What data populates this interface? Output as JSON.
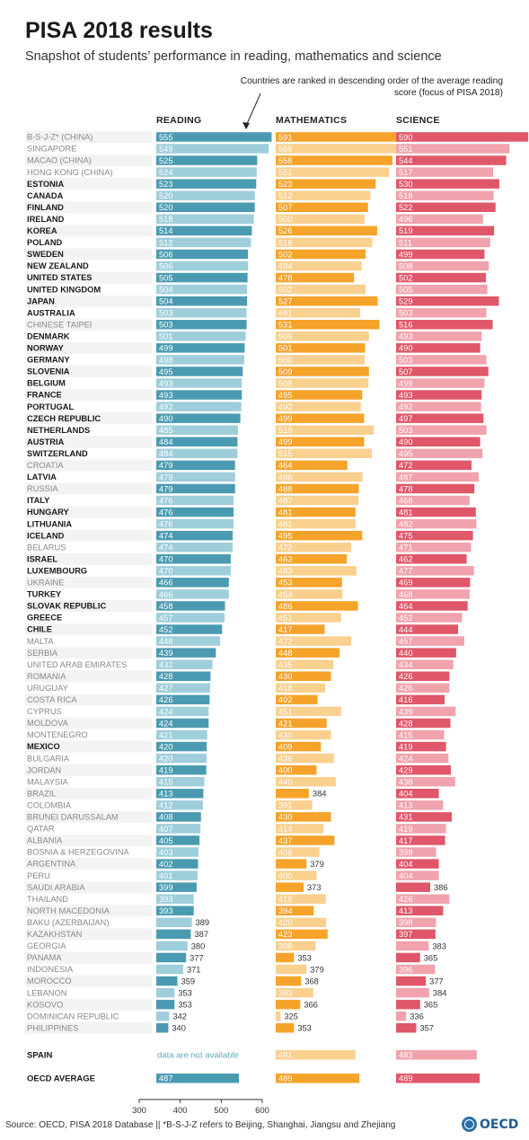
{
  "header": {
    "title": "PISA 2018 results",
    "subtitle": "Snapshot of students’ performance in reading, mathematics and science",
    "note": "Countries are ranked in descending order of the average reading score (focus of PISA 2018)"
  },
  "footer": {
    "source": "Source: OECD, PISA 2018 Database || *B-S-J-Z refers to Beijing, Shanghai, Jiangsu and Zhejiang",
    "logo_text": "OECD"
  },
  "colors": {
    "reading": "#4a9bb1",
    "reading_light": "#9fcedb",
    "math": "#f5a32a",
    "math_light": "#fad08f",
    "science": "#e05769",
    "science_light": "#f0a3ad",
    "oecd_member_text": "#1a1a1a",
    "partner_text": "#888888",
    "row_stripe": "#ececec"
  },
  "chart_data": {
    "type": "bar",
    "title": "PISA 2018 results",
    "subtitle": "Snapshot of students’ performance in reading, mathematics and science",
    "subjects": [
      "READING",
      "MATHEMATICS",
      "SCIENCE"
    ],
    "x_axis": {
      "ticks": [
        300,
        400,
        500,
        600
      ],
      "min": 300,
      "max": 600
    },
    "countries": [
      {
        "name": "B-S-J-Z* (CHINA)",
        "oecd": false,
        "reading": 555,
        "math": 591,
        "science": 590,
        "r_hi": true,
        "m_hi": true,
        "s_hi": true
      },
      {
        "name": "SINGAPORE",
        "oecd": false,
        "reading": 549,
        "math": 569,
        "science": 551,
        "r_hi": false,
        "m_hi": false,
        "s_hi": false
      },
      {
        "name": "MACAO (CHINA)",
        "oecd": false,
        "reading": 525,
        "math": 558,
        "science": 544,
        "r_hi": true,
        "m_hi": true,
        "s_hi": true
      },
      {
        "name": "HONG KONG (CHINA)",
        "oecd": false,
        "reading": 524,
        "math": 551,
        "science": 517,
        "r_hi": false,
        "m_hi": false,
        "s_hi": false
      },
      {
        "name": "ESTONIA",
        "oecd": true,
        "reading": 523,
        "math": 523,
        "science": 530,
        "r_hi": true,
        "m_hi": true,
        "s_hi": true
      },
      {
        "name": "CANADA",
        "oecd": true,
        "reading": 520,
        "math": 512,
        "science": 518,
        "r_hi": false,
        "m_hi": false,
        "s_hi": false
      },
      {
        "name": "FINLAND",
        "oecd": true,
        "reading": 520,
        "math": 507,
        "science": 522,
        "r_hi": true,
        "m_hi": true,
        "s_hi": true
      },
      {
        "name": "IRELAND",
        "oecd": true,
        "reading": 518,
        "math": 500,
        "science": 496,
        "r_hi": false,
        "m_hi": false,
        "s_hi": false
      },
      {
        "name": "KOREA",
        "oecd": true,
        "reading": 514,
        "math": 526,
        "science": 519,
        "r_hi": true,
        "m_hi": true,
        "s_hi": true
      },
      {
        "name": "POLAND",
        "oecd": true,
        "reading": 512,
        "math": 516,
        "science": 511,
        "r_hi": false,
        "m_hi": false,
        "s_hi": false
      },
      {
        "name": "SWEDEN",
        "oecd": true,
        "reading": 506,
        "math": 502,
        "science": 499,
        "r_hi": true,
        "m_hi": true,
        "s_hi": true
      },
      {
        "name": "NEW ZEALAND",
        "oecd": true,
        "reading": 506,
        "math": 494,
        "science": 508,
        "r_hi": false,
        "m_hi": false,
        "s_hi": false
      },
      {
        "name": "UNITED STATES",
        "oecd": true,
        "reading": 505,
        "math": 478,
        "science": 502,
        "r_hi": true,
        "m_hi": true,
        "s_hi": true
      },
      {
        "name": "UNITED KINGDOM",
        "oecd": true,
        "reading": 504,
        "math": 502,
        "science": 505,
        "r_hi": false,
        "m_hi": false,
        "s_hi": false
      },
      {
        "name": "JAPAN",
        "oecd": true,
        "reading": 504,
        "math": 527,
        "science": 529,
        "r_hi": true,
        "m_hi": true,
        "s_hi": true
      },
      {
        "name": "AUSTRALIA",
        "oecd": true,
        "reading": 503,
        "math": 491,
        "science": 503,
        "r_hi": false,
        "m_hi": false,
        "s_hi": false
      },
      {
        "name": "CHINESE TAIPEI",
        "oecd": false,
        "reading": 503,
        "math": 531,
        "science": 516,
        "r_hi": true,
        "m_hi": true,
        "s_hi": true
      },
      {
        "name": "DENMARK",
        "oecd": true,
        "reading": 501,
        "math": 509,
        "science": 493,
        "r_hi": false,
        "m_hi": false,
        "s_hi": false
      },
      {
        "name": "NORWAY",
        "oecd": true,
        "reading": 499,
        "math": 501,
        "science": 490,
        "r_hi": true,
        "m_hi": true,
        "s_hi": true
      },
      {
        "name": "GERMANY",
        "oecd": true,
        "reading": 498,
        "math": 500,
        "science": 503,
        "r_hi": false,
        "m_hi": false,
        "s_hi": false
      },
      {
        "name": "SLOVENIA",
        "oecd": true,
        "reading": 495,
        "math": 509,
        "science": 507,
        "r_hi": true,
        "m_hi": true,
        "s_hi": true
      },
      {
        "name": "BELGIUM",
        "oecd": true,
        "reading": 493,
        "math": 508,
        "science": 499,
        "r_hi": false,
        "m_hi": false,
        "s_hi": false
      },
      {
        "name": "FRANCE",
        "oecd": true,
        "reading": 493,
        "math": 495,
        "science": 493,
        "r_hi": true,
        "m_hi": true,
        "s_hi": true
      },
      {
        "name": "PORTUGAL",
        "oecd": true,
        "reading": 492,
        "math": 492,
        "science": 492,
        "r_hi": false,
        "m_hi": false,
        "s_hi": false
      },
      {
        "name": "CZECH REPUBLIC",
        "oecd": true,
        "reading": 490,
        "math": 499,
        "science": 497,
        "r_hi": true,
        "m_hi": true,
        "s_hi": true
      },
      {
        "name": "NETHERLANDS",
        "oecd": true,
        "reading": 485,
        "math": 519,
        "science": 503,
        "r_hi": false,
        "m_hi": false,
        "s_hi": false
      },
      {
        "name": "AUSTRIA",
        "oecd": true,
        "reading": 484,
        "math": 499,
        "science": 490,
        "r_hi": true,
        "m_hi": true,
        "s_hi": true
      },
      {
        "name": "SWITZERLAND",
        "oecd": true,
        "reading": 484,
        "math": 515,
        "science": 495,
        "r_hi": false,
        "m_hi": false,
        "s_hi": false
      },
      {
        "name": "CROATIA",
        "oecd": false,
        "reading": 479,
        "math": 464,
        "science": 472,
        "r_hi": true,
        "m_hi": true,
        "s_hi": true
      },
      {
        "name": "LATVIA",
        "oecd": true,
        "reading": 479,
        "math": 496,
        "science": 487,
        "r_hi": false,
        "m_hi": false,
        "s_hi": false
      },
      {
        "name": "RUSSIA",
        "oecd": false,
        "reading": 479,
        "math": 488,
        "science": 478,
        "r_hi": true,
        "m_hi": true,
        "s_hi": true
      },
      {
        "name": "ITALY",
        "oecd": true,
        "reading": 476,
        "math": 487,
        "science": 468,
        "r_hi": false,
        "m_hi": false,
        "s_hi": false
      },
      {
        "name": "HUNGARY",
        "oecd": true,
        "reading": 476,
        "math": 481,
        "science": 481,
        "r_hi": true,
        "m_hi": true,
        "s_hi": true
      },
      {
        "name": "LITHUANIA",
        "oecd": true,
        "reading": 476,
        "math": 481,
        "science": 482,
        "r_hi": false,
        "m_hi": false,
        "s_hi": false
      },
      {
        "name": "ICELAND",
        "oecd": true,
        "reading": 474,
        "math": 495,
        "science": 475,
        "r_hi": true,
        "m_hi": true,
        "s_hi": true
      },
      {
        "name": "BELARUS",
        "oecd": false,
        "reading": 474,
        "math": 472,
        "science": 471,
        "r_hi": false,
        "m_hi": false,
        "s_hi": false
      },
      {
        "name": "ISRAEL",
        "oecd": true,
        "reading": 470,
        "math": 463,
        "science": 462,
        "r_hi": true,
        "m_hi": true,
        "s_hi": true
      },
      {
        "name": "LUXEMBOURG",
        "oecd": true,
        "reading": 470,
        "math": 483,
        "science": 477,
        "r_hi": false,
        "m_hi": false,
        "s_hi": false
      },
      {
        "name": "UKRAINE",
        "oecd": false,
        "reading": 466,
        "math": 453,
        "science": 469,
        "r_hi": true,
        "m_hi": true,
        "s_hi": true
      },
      {
        "name": "TURKEY",
        "oecd": true,
        "reading": 466,
        "math": 454,
        "science": 468,
        "r_hi": false,
        "m_hi": false,
        "s_hi": false
      },
      {
        "name": "SLOVAK REPUBLIC",
        "oecd": true,
        "reading": 458,
        "math": 486,
        "science": 464,
        "r_hi": true,
        "m_hi": true,
        "s_hi": true
      },
      {
        "name": "GREECE",
        "oecd": true,
        "reading": 457,
        "math": 451,
        "science": 452,
        "r_hi": false,
        "m_hi": false,
        "s_hi": false
      },
      {
        "name": "CHILE",
        "oecd": true,
        "reading": 452,
        "math": 417,
        "science": 444,
        "r_hi": true,
        "m_hi": true,
        "s_hi": true
      },
      {
        "name": "MALTA",
        "oecd": false,
        "reading": 448,
        "math": 472,
        "science": 457,
        "r_hi": false,
        "m_hi": false,
        "s_hi": false
      },
      {
        "name": "SERBIA",
        "oecd": false,
        "reading": 439,
        "math": 448,
        "science": 440,
        "r_hi": true,
        "m_hi": true,
        "s_hi": true
      },
      {
        "name": "UNITED ARAB EMIRATES",
        "oecd": false,
        "reading": 432,
        "math": 435,
        "science": 434,
        "r_hi": false,
        "m_hi": false,
        "s_hi": false
      },
      {
        "name": "ROMANIA",
        "oecd": false,
        "reading": 428,
        "math": 430,
        "science": 426,
        "r_hi": true,
        "m_hi": true,
        "s_hi": true
      },
      {
        "name": "URUGUAY",
        "oecd": false,
        "reading": 427,
        "math": 418,
        "science": 426,
        "r_hi": false,
        "m_hi": false,
        "s_hi": false
      },
      {
        "name": "COSTA RICA",
        "oecd": false,
        "reading": 426,
        "math": 402,
        "science": 416,
        "r_hi": true,
        "m_hi": true,
        "s_hi": true
      },
      {
        "name": "CYPRUS",
        "oecd": false,
        "reading": 424,
        "math": 451,
        "science": 439,
        "r_hi": false,
        "m_hi": false,
        "s_hi": false
      },
      {
        "name": "MOLDOVA",
        "oecd": false,
        "reading": 424,
        "math": 421,
        "science": 428,
        "r_hi": true,
        "m_hi": true,
        "s_hi": true
      },
      {
        "name": "MONTENEGRO",
        "oecd": false,
        "reading": 421,
        "math": 430,
        "science": 415,
        "r_hi": false,
        "m_hi": false,
        "s_hi": false
      },
      {
        "name": "MEXICO",
        "oecd": true,
        "reading": 420,
        "math": 409,
        "science": 419,
        "r_hi": true,
        "m_hi": true,
        "s_hi": true
      },
      {
        "name": "BULGARIA",
        "oecd": false,
        "reading": 420,
        "math": 436,
        "science": 424,
        "r_hi": false,
        "m_hi": false,
        "s_hi": false
      },
      {
        "name": "JORDAN",
        "oecd": false,
        "reading": 419,
        "math": 400,
        "science": 429,
        "r_hi": true,
        "m_hi": true,
        "s_hi": true
      },
      {
        "name": "MALAYSIA",
        "oecd": false,
        "reading": 415,
        "math": 440,
        "science": 438,
        "r_hi": false,
        "m_hi": false,
        "s_hi": false
      },
      {
        "name": "BRAZIL",
        "oecd": false,
        "reading": 413,
        "math": 384,
        "science": 404,
        "r_hi": true,
        "m_hi": true,
        "s_hi": true
      },
      {
        "name": "COLOMBIA",
        "oecd": false,
        "reading": 412,
        "math": 391,
        "science": 413,
        "r_hi": false,
        "m_hi": false,
        "s_hi": false
      },
      {
        "name": "BRUNEI DARUSSALAM",
        "oecd": false,
        "reading": 408,
        "math": 430,
        "science": 431,
        "r_hi": true,
        "m_hi": true,
        "s_hi": true
      },
      {
        "name": "QATAR",
        "oecd": false,
        "reading": 407,
        "math": 414,
        "science": 419,
        "r_hi": false,
        "m_hi": false,
        "s_hi": false
      },
      {
        "name": "ALBANIA",
        "oecd": false,
        "reading": 405,
        "math": 437,
        "science": 417,
        "r_hi": true,
        "m_hi": true,
        "s_hi": true
      },
      {
        "name": "BOSNIA & HERZEGOVINA",
        "oecd": false,
        "reading": 403,
        "math": 406,
        "science": 398,
        "r_hi": false,
        "m_hi": false,
        "s_hi": false
      },
      {
        "name": "ARGENTINA",
        "oecd": false,
        "reading": 402,
        "math": 379,
        "science": 404,
        "r_hi": true,
        "m_hi": true,
        "s_hi": true
      },
      {
        "name": "PERU",
        "oecd": false,
        "reading": 401,
        "math": 400,
        "science": 404,
        "r_hi": false,
        "m_hi": false,
        "s_hi": false
      },
      {
        "name": "SAUDI ARABIA",
        "oecd": false,
        "reading": 399,
        "math": 373,
        "science": 386,
        "r_hi": true,
        "m_hi": true,
        "s_hi": true
      },
      {
        "name": "THAILAND",
        "oecd": false,
        "reading": 393,
        "math": 419,
        "science": 426,
        "r_hi": false,
        "m_hi": false,
        "s_hi": false
      },
      {
        "name": "NORTH MACEDONIA",
        "oecd": false,
        "reading": 393,
        "math": 394,
        "science": 413,
        "r_hi": true,
        "m_hi": true,
        "s_hi": true
      },
      {
        "name": "BAKU (AZERBAIJAN)",
        "oecd": false,
        "reading": 389,
        "math": 420,
        "science": 398,
        "r_hi": false,
        "m_hi": false,
        "s_hi": false
      },
      {
        "name": "KAZAKHSTAN",
        "oecd": false,
        "reading": 387,
        "math": 423,
        "science": 397,
        "r_hi": true,
        "m_hi": true,
        "s_hi": true
      },
      {
        "name": "GEORGIA",
        "oecd": false,
        "reading": 380,
        "math": 398,
        "science": 383,
        "r_hi": false,
        "m_hi": false,
        "s_hi": false
      },
      {
        "name": "PANAMA",
        "oecd": false,
        "reading": 377,
        "math": 353,
        "science": 365,
        "r_hi": true,
        "m_hi": true,
        "s_hi": true
      },
      {
        "name": "INDONESIA",
        "oecd": false,
        "reading": 371,
        "math": 379,
        "science": 396,
        "r_hi": false,
        "m_hi": false,
        "s_hi": false
      },
      {
        "name": "MOROCCO",
        "oecd": false,
        "reading": 359,
        "math": 368,
        "science": 377,
        "r_hi": true,
        "m_hi": true,
        "s_hi": true
      },
      {
        "name": "LEBANON",
        "oecd": false,
        "reading": 353,
        "math": 393,
        "science": 384,
        "r_hi": false,
        "m_hi": false,
        "s_hi": false
      },
      {
        "name": "KOSOVO",
        "oecd": false,
        "reading": 353,
        "math": 366,
        "science": 365,
        "r_hi": true,
        "m_hi": true,
        "s_hi": true
      },
      {
        "name": "DOMINICAN REPUBLIC",
        "oecd": false,
        "reading": 342,
        "math": 325,
        "science": 336,
        "r_hi": false,
        "m_hi": false,
        "s_hi": false
      },
      {
        "name": "PHILIPPINES",
        "oecd": false,
        "reading": 340,
        "math": 353,
        "science": 357,
        "r_hi": true,
        "m_hi": true,
        "s_hi": true
      }
    ],
    "spain": {
      "name": "SPAIN",
      "reading_text": "data are not available",
      "math": 481,
      "science": 483
    },
    "oecd_average": {
      "name": "OECD AVERAGE",
      "reading": 487,
      "math": 489,
      "science": 489
    }
  }
}
